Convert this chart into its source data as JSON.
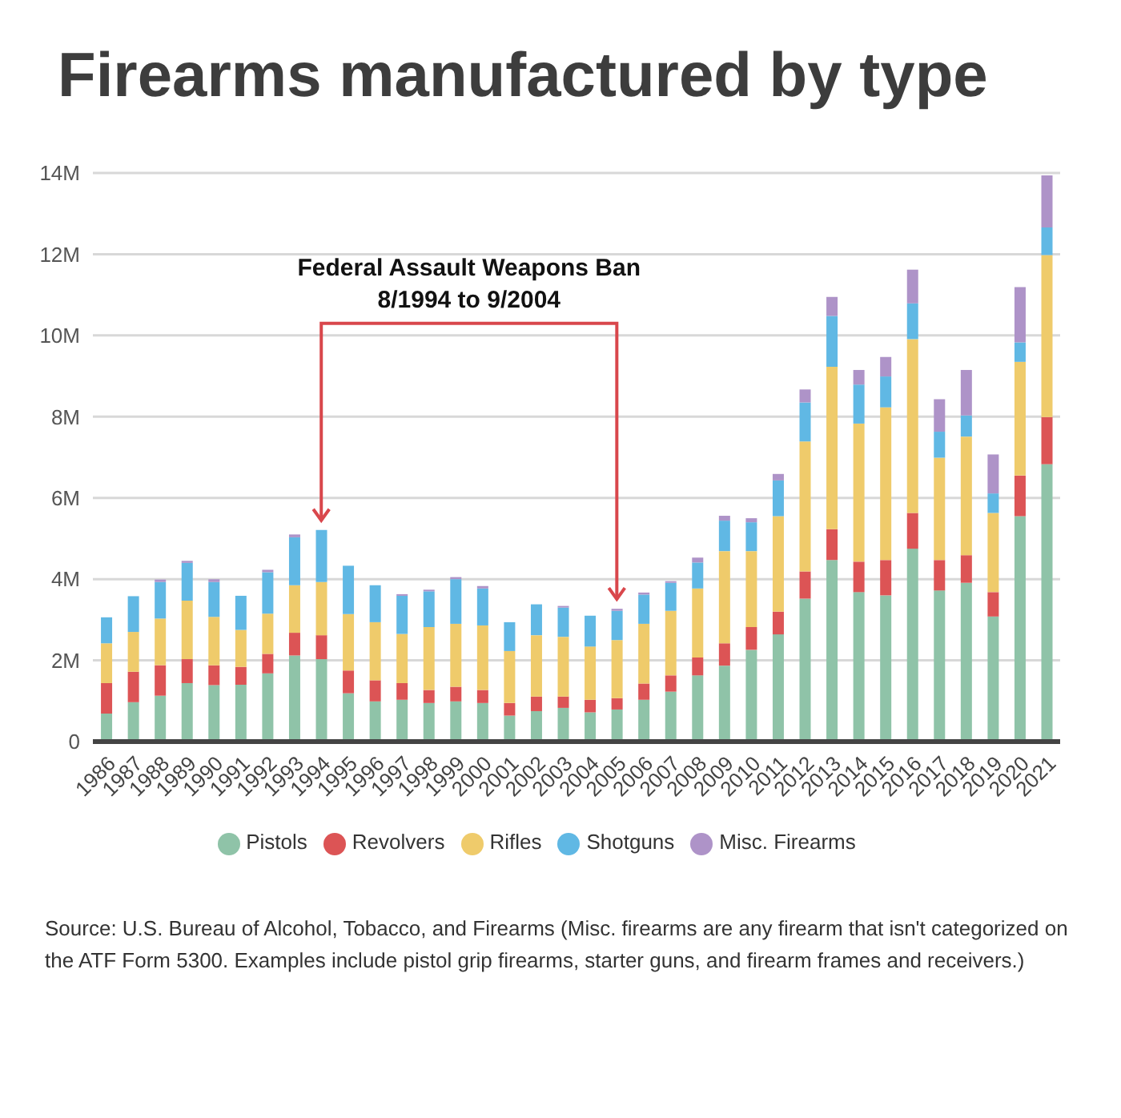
{
  "chart_data": {
    "type": "bar",
    "title": "Firearms manufactured by type",
    "stacked": true,
    "legend": "bottom",
    "grid": "y",
    "categories": [
      "1986",
      "1987",
      "1988",
      "1989",
      "1990",
      "1991",
      "1992",
      "1993",
      "1994",
      "1995",
      "1996",
      "1997",
      "1998",
      "1999",
      "2000",
      "2001",
      "2002",
      "2003",
      "2004",
      "2005",
      "2006",
      "2007",
      "2008",
      "2009",
      "2010",
      "2011",
      "2012",
      "2013",
      "2014",
      "2015",
      "2016",
      "2017",
      "2018",
      "2019",
      "2020",
      "2021"
    ],
    "series": [
      {
        "name": "Pistols",
        "color": "#8fc3a8",
        "values": [
          0.69,
          0.97,
          1.13,
          1.44,
          1.39,
          1.4,
          1.68,
          2.12,
          2.03,
          1.19,
          0.99,
          1.03,
          0.95,
          0.99,
          0.95,
          0.64,
          0.75,
          0.83,
          0.72,
          0.79,
          1.03,
          1.23,
          1.63,
          1.87,
          2.26,
          2.64,
          3.52,
          4.47,
          3.68,
          3.6,
          4.75,
          3.72,
          3.91,
          3.08,
          5.55,
          6.83
        ]
      },
      {
        "name": "Revolvers",
        "color": "#dc5455",
        "values": [
          0.75,
          0.75,
          0.75,
          0.59,
          0.49,
          0.44,
          0.48,
          0.56,
          0.59,
          0.56,
          0.52,
          0.41,
          0.32,
          0.36,
          0.32,
          0.31,
          0.36,
          0.28,
          0.31,
          0.28,
          0.4,
          0.4,
          0.44,
          0.55,
          0.56,
          0.56,
          0.67,
          0.76,
          0.75,
          0.87,
          0.88,
          0.75,
          0.68,
          0.6,
          1.0,
          1.16
        ]
      },
      {
        "name": "Rifles",
        "color": "#efcb6b",
        "values": [
          0.98,
          0.98,
          1.15,
          1.44,
          1.19,
          0.91,
          0.99,
          1.17,
          1.31,
          1.39,
          1.43,
          1.21,
          1.55,
          1.55,
          1.59,
          1.28,
          1.51,
          1.47,
          1.31,
          1.43,
          1.47,
          1.59,
          1.7,
          2.27,
          1.87,
          2.35,
          3.2,
          4.0,
          3.4,
          3.76,
          4.28,
          2.52,
          2.92,
          1.95,
          2.8,
          3.99
        ]
      },
      {
        "name": "Shotguns",
        "color": "#60b8e4",
        "values": [
          0.64,
          0.88,
          0.9,
          0.93,
          0.86,
          0.84,
          1.02,
          1.18,
          1.28,
          1.19,
          0.91,
          0.94,
          0.88,
          1.1,
          0.91,
          0.71,
          0.76,
          0.72,
          0.76,
          0.72,
          0.72,
          0.69,
          0.64,
          0.75,
          0.71,
          0.88,
          0.96,
          1.25,
          0.96,
          0.76,
          0.88,
          0.64,
          0.52,
          0.48,
          0.48,
          0.68
        ]
      },
      {
        "name": "Misc. Firearms",
        "color": "#ae93c8",
        "values": [
          0,
          0,
          0.06,
          0.05,
          0.07,
          0,
          0.06,
          0.07,
          0,
          0,
          0,
          0.04,
          0.04,
          0.05,
          0.06,
          0,
          0,
          0.04,
          0,
          0.05,
          0.05,
          0.04,
          0.12,
          0.12,
          0.1,
          0.16,
          0.32,
          0.47,
          0.36,
          0.48,
          0.83,
          0.8,
          1.12,
          0.96,
          1.36,
          1.28
        ]
      }
    ],
    "ylim": [
      0,
      14
    ],
    "yticks": [
      {
        "value": 0,
        "label": "0"
      },
      {
        "value": 2,
        "label": "2M"
      },
      {
        "value": 4,
        "label": "4M"
      },
      {
        "value": 6,
        "label": "6M"
      },
      {
        "value": 8,
        "label": "8M"
      },
      {
        "value": 10,
        "label": "10M"
      },
      {
        "value": 12,
        "label": "12M"
      },
      {
        "value": 14,
        "label": "14M"
      }
    ],
    "annotations": [
      "Federal Assault Weapons Ban\n8/1994 to 9/2004",
      "Source: U.S. Bureau of Alcohol, Tobacco, and Firearms (Misc. firearms are any firearm that isn't categorized on the ATF Form 5300. Examples include pistol grip firearms, starter guns, and firearm frames and receivers.)"
    ]
  }
}
